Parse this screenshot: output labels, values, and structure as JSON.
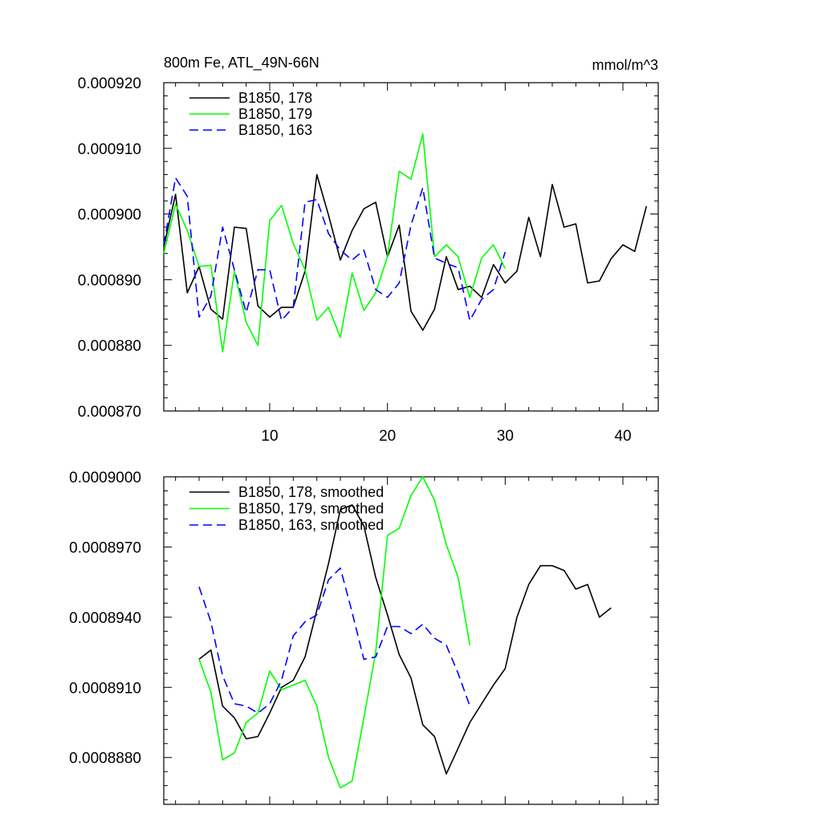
{
  "colors": {
    "black": "#000000",
    "green": "#00ff00",
    "blue": "#0000ff"
  },
  "chart_data": [
    {
      "type": "line",
      "title": "800m Fe, ATL_49N-66N",
      "units": "mmol/m^3",
      "xlim": [
        1,
        43
      ],
      "ylim": [
        0.00087,
        0.00092
      ],
      "x_ticks": [
        "10",
        "20",
        "30",
        "40"
      ],
      "y_ticks": [
        "0.000870",
        "0.000880",
        "0.000890",
        "0.000900",
        "0.000910",
        "0.000920"
      ],
      "legend_position": "top-left",
      "series": [
        {
          "name": "B1850, 178",
          "color": "#000000",
          "dash": "solid",
          "x": [
            1,
            2,
            3,
            4,
            5,
            6,
            7,
            8,
            9,
            10,
            11,
            12,
            13,
            14,
            15,
            16,
            17,
            18,
            19,
            20,
            21,
            22,
            23,
            24,
            25,
            26,
            27,
            28,
            29,
            30,
            31,
            32,
            33,
            34,
            35,
            36,
            37,
            38,
            39,
            40,
            41,
            42
          ],
          "y": [
            0.000895,
            0.000903,
            0.000888,
            0.000892,
            0.0008855,
            0.000884,
            0.000898,
            0.0008978,
            0.000886,
            0.0008843,
            0.0008858,
            0.0008858,
            0.0008913,
            0.000906,
            0.0008998,
            0.000893,
            0.0008975,
            0.0009008,
            0.0009018,
            0.0008935,
            0.0008983,
            0.0008852,
            0.0008823,
            0.0008855,
            0.0008935,
            0.0008885,
            0.000889,
            0.0008873,
            0.0008923,
            0.0008895,
            0.0008913,
            0.0008995,
            0.0008935,
            0.0009045,
            0.000898,
            0.0008985,
            0.0008895,
            0.0008898,
            0.0008932,
            0.0008953,
            0.0008943,
            0.0009012
          ]
        },
        {
          "name": "B1850, 179",
          "color": "#00ff00",
          "dash": "solid",
          "x": [
            1,
            2,
            3,
            4,
            5,
            6,
            7,
            8,
            9,
            10,
            11,
            12,
            13,
            14,
            15,
            16,
            17,
            18,
            19,
            20,
            21,
            22,
            23,
            24,
            25,
            26,
            27,
            28,
            29,
            30
          ],
          "y": [
            0.000894,
            0.0009015,
            0.0008975,
            0.000892,
            0.0008922,
            0.000879,
            0.0008913,
            0.0008835,
            0.00088,
            0.000899,
            0.0009013,
            0.0008955,
            0.0008915,
            0.0008838,
            0.0008858,
            0.0008812,
            0.000891,
            0.0008853,
            0.000888,
            0.0008935,
            0.0009065,
            0.0009053,
            0.0009122,
            0.0008935,
            0.0008953,
            0.0008935,
            0.0008873,
            0.0008933,
            0.0008953,
            0.0008917
          ]
        },
        {
          "name": "B1850, 163",
          "color": "#0000ff",
          "dash": "dashed",
          "x": [
            1,
            2,
            3,
            4,
            5,
            6,
            7,
            8,
            9,
            10,
            11,
            12,
            13,
            14,
            15,
            16,
            17,
            18,
            19,
            20,
            21,
            22,
            23,
            24,
            25,
            26,
            27,
            28,
            29,
            30
          ],
          "y": [
            0.0008953,
            0.0009055,
            0.0009027,
            0.0008843,
            0.0008875,
            0.000898,
            0.0008915,
            0.000885,
            0.0008915,
            0.0008915,
            0.0008838,
            0.0008858,
            0.0009018,
            0.0009022,
            0.000897,
            0.0008945,
            0.000893,
            0.0008945,
            0.0008885,
            0.0008873,
            0.0008895,
            0.0008983,
            0.000904,
            0.0008933,
            0.0008925,
            0.0008918,
            0.0008838,
            0.000887,
            0.0008885,
            0.0008942
          ]
        }
      ]
    },
    {
      "type": "line",
      "xlim": [
        1,
        43
      ],
      "ylim": [
        0.000886,
        0.0009
      ],
      "x_ticks": [
        "10",
        "20",
        "30",
        "40"
      ],
      "y_ticks": [
        "0.0008880",
        "0.0008910",
        "0.0008940",
        "0.0008970",
        "0.0009000"
      ],
      "legend_position": "top-left",
      "series": [
        {
          "name": "B1850, 178, smoothed",
          "color": "#000000",
          "dash": "solid",
          "x": [
            4,
            5,
            6,
            7,
            8,
            9,
            10,
            11,
            12,
            13,
            14,
            15,
            16,
            17,
            18,
            19,
            20,
            21,
            22,
            23,
            24,
            25,
            26,
            27,
            28,
            29,
            30,
            31,
            32,
            33,
            34,
            35,
            36,
            37,
            38,
            39
          ],
          "y": [
            0.0008922,
            0.0008926,
            0.0008902,
            0.0008897,
            0.0008888,
            0.0008889,
            0.0008899,
            0.000891,
            0.0008913,
            0.0008923,
            0.0008943,
            0.0008963,
            0.0008986,
            0.0008988,
            0.0008979,
            0.0008957,
            0.0008941,
            0.0008924,
            0.0008914,
            0.0008894,
            0.0008889,
            0.0008873,
            0.0008884,
            0.0008895,
            0.0008903,
            0.0008911,
            0.0008918,
            0.000894,
            0.0008954,
            0.0008962,
            0.0008962,
            0.000896,
            0.0008952,
            0.0008954,
            0.000894,
            0.0008944
          ]
        },
        {
          "name": "B1850, 179, smoothed",
          "color": "#00ff00",
          "dash": "solid",
          "x": [
            4,
            5,
            6,
            7,
            8,
            9,
            10,
            11,
            12,
            13,
            14,
            15,
            16,
            17,
            18,
            19,
            20,
            21,
            22,
            23,
            24,
            25,
            26,
            27
          ],
          "y": [
            0.0008922,
            0.0008908,
            0.0008879,
            0.0008882,
            0.0008895,
            0.0008899,
            0.0008917,
            0.0008909,
            0.0008911,
            0.0008913,
            0.0008902,
            0.000888,
            0.0008867,
            0.000887,
            0.0008897,
            0.0008925,
            0.0008975,
            0.0008978,
            0.0008992,
            0.0009,
            0.000899,
            0.0008971,
            0.0008957,
            0.0008928
          ]
        },
        {
          "name": "B1850, 163, smoothed",
          "color": "#0000ff",
          "dash": "dashed",
          "x": [
            4,
            5,
            6,
            7,
            8,
            9,
            10,
            11,
            12,
            13,
            14,
            15,
            16,
            17,
            18,
            19,
            20,
            21,
            22,
            23,
            24,
            25,
            26,
            27
          ],
          "y": [
            0.0008953,
            0.0008938,
            0.0008915,
            0.0008903,
            0.0008902,
            0.0008899,
            0.0008903,
            0.0008913,
            0.0008932,
            0.0008938,
            0.0008941,
            0.0008956,
            0.0008961,
            0.0008942,
            0.0008922,
            0.0008923,
            0.0008936,
            0.0008936,
            0.0008933,
            0.0008937,
            0.0008931,
            0.0008928,
            0.0008916,
            0.0008902
          ]
        }
      ]
    }
  ]
}
